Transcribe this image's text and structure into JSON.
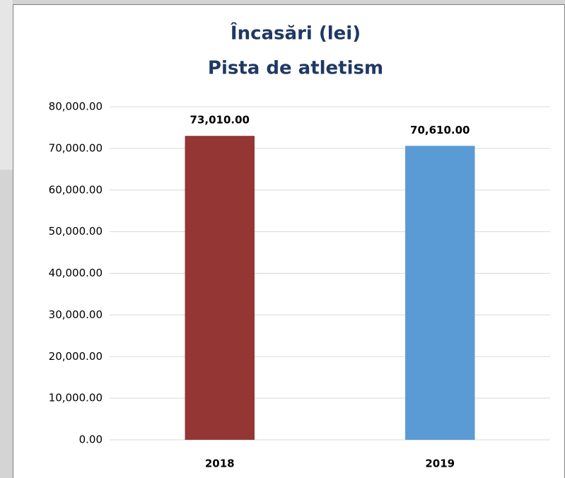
{
  "chart_data": {
    "type": "bar",
    "title": "Încasări (lei)",
    "subtitle": "Pista de atletism",
    "categories": [
      "2018",
      "2019"
    ],
    "values": [
      73010,
      70610
    ],
    "value_labels": [
      "73,010.00",
      "70,610.00"
    ],
    "colors": [
      "#943634",
      "#5b9bd5"
    ],
    "ylim": [
      0,
      80000
    ],
    "yticks": [
      {
        "value": 0,
        "label": "0.00"
      },
      {
        "value": 10000,
        "label": "10,000.00"
      },
      {
        "value": 20000,
        "label": "20,000.00"
      },
      {
        "value": 30000,
        "label": "30,000.00"
      },
      {
        "value": 40000,
        "label": "40,000.00"
      },
      {
        "value": 50000,
        "label": "50,000.00"
      },
      {
        "value": 60000,
        "label": "60,000.00"
      },
      {
        "value": 70000,
        "label": "70,000.00"
      },
      {
        "value": 80000,
        "label": "80,000.00"
      }
    ],
    "grid": true
  }
}
